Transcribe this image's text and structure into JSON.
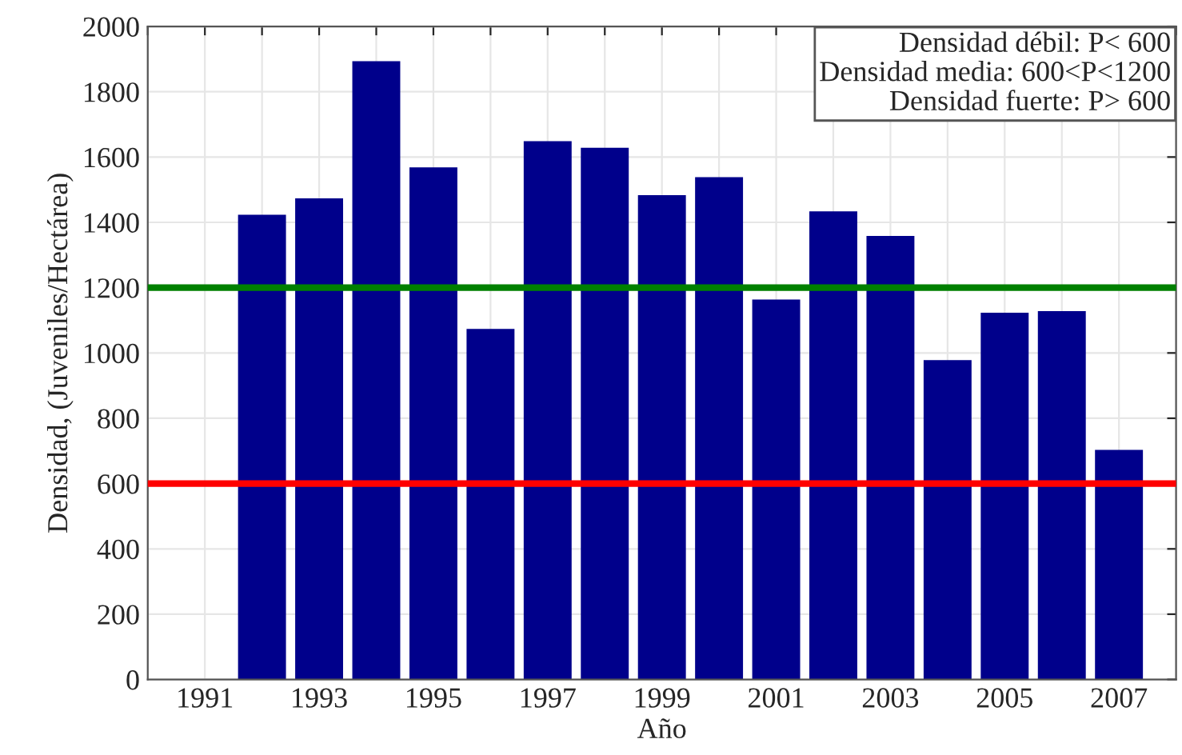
{
  "chart_data": {
    "type": "bar",
    "xlabel": "Año",
    "ylabel": "Densidad, (Juveniles/Hectárea)",
    "x": [
      1992,
      1993,
      1994,
      1995,
      1996,
      1997,
      1998,
      1999,
      2000,
      2001,
      2002,
      2003,
      2004,
      2005,
      2006,
      2007
    ],
    "values": [
      1420,
      1470,
      1890,
      1565,
      1070,
      1645,
      1625,
      1480,
      1535,
      1160,
      1430,
      1355,
      975,
      1120,
      1125,
      700
    ],
    "color": "#00008b",
    "xlim": [
      1990,
      2008
    ],
    "xticks": [
      {
        "value": 1990,
        "label": null
      },
      1991,
      {
        "value": 1992,
        "label": null
      },
      1993,
      {
        "value": 1994,
        "label": null
      },
      1995,
      {
        "value": 1996,
        "label": null
      },
      1997,
      {
        "value": 1998,
        "label": null
      },
      1999,
      {
        "value": 2000,
        "label": null
      },
      2001,
      {
        "value": 2002,
        "label": null
      },
      2003,
      {
        "value": 2004,
        "label": null
      },
      2005,
      {
        "value": 2006,
        "label": null
      },
      2007,
      {
        "value": 2008,
        "label": null
      }
    ],
    "ylim": [
      0,
      2000
    ],
    "yticks": [
      0,
      200,
      400,
      600,
      800,
      1000,
      1200,
      1400,
      1600,
      1800,
      2000
    ],
    "ref_lines": [
      {
        "axis": "y",
        "value": 1200,
        "color": "#008000"
      },
      {
        "axis": "y",
        "value": 600,
        "color": "#ff0000"
      }
    ],
    "annotations": [
      "Densidad débil: P< 600\nDensidad media: 600<P<1200\nDensidad fuerte: P> 600"
    ],
    "grid": true,
    "legend": false
  }
}
